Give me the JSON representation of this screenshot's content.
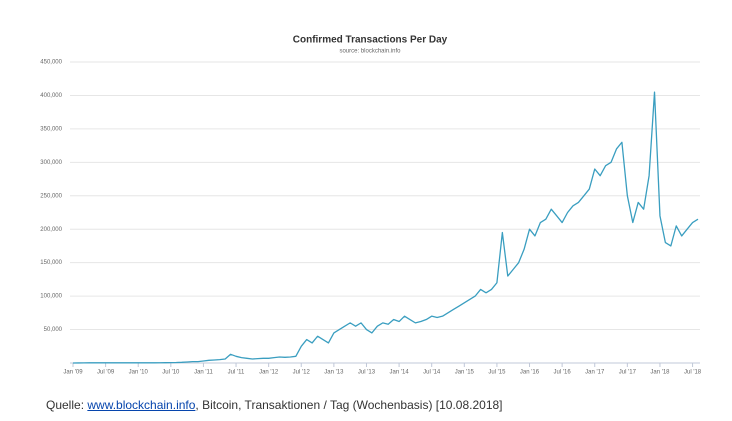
{
  "chart_data": {
    "type": "line",
    "title": "Confirmed Transactions Per Day",
    "subtitle": "source: blockchain.info",
    "color": "#3a9ec0",
    "grid": true,
    "x": [
      "2009-01",
      "2009-02",
      "2009-03",
      "2009-04",
      "2009-05",
      "2009-06",
      "2009-07",
      "2009-08",
      "2009-09",
      "2009-10",
      "2009-11",
      "2009-12",
      "2010-01",
      "2010-02",
      "2010-03",
      "2010-04",
      "2010-05",
      "2010-06",
      "2010-07",
      "2010-08",
      "2010-09",
      "2010-10",
      "2010-11",
      "2010-12",
      "2011-01",
      "2011-02",
      "2011-03",
      "2011-04",
      "2011-05",
      "2011-06",
      "2011-07",
      "2011-08",
      "2011-09",
      "2011-10",
      "2011-11",
      "2011-12",
      "2012-01",
      "2012-02",
      "2012-03",
      "2012-04",
      "2012-05",
      "2012-06",
      "2012-07",
      "2012-08",
      "2012-09",
      "2012-10",
      "2012-11",
      "2012-12",
      "2013-01",
      "2013-02",
      "2013-03",
      "2013-04",
      "2013-05",
      "2013-06",
      "2013-07",
      "2013-08",
      "2013-09",
      "2013-10",
      "2013-11",
      "2013-12",
      "2014-01",
      "2014-02",
      "2014-03",
      "2014-04",
      "2014-05",
      "2014-06",
      "2014-07",
      "2014-08",
      "2014-09",
      "2014-10",
      "2014-11",
      "2014-12",
      "2015-01",
      "2015-02",
      "2015-03",
      "2015-04",
      "2015-05",
      "2015-06",
      "2015-07",
      "2015-08",
      "2015-09",
      "2015-10",
      "2015-11",
      "2015-12",
      "2016-01",
      "2016-02",
      "2016-03",
      "2016-04",
      "2016-05",
      "2016-06",
      "2016-07",
      "2016-08",
      "2016-09",
      "2016-10",
      "2016-11",
      "2016-12",
      "2017-01",
      "2017-02",
      "2017-03",
      "2017-04",
      "2017-05",
      "2017-06",
      "2017-07",
      "2017-08",
      "2017-09",
      "2017-10",
      "2017-11",
      "2017-12",
      "2018-01",
      "2018-02",
      "2018-03",
      "2018-04",
      "2018-05",
      "2018-06",
      "2018-07",
      "2018-08"
    ],
    "values": [
      0,
      100,
      200,
      300,
      400,
      300,
      300,
      300,
      300,
      300,
      300,
      400,
      300,
      300,
      300,
      300,
      400,
      500,
      600,
      700,
      1000,
      1500,
      2000,
      2000,
      3000,
      4000,
      4500,
      5000,
      6000,
      13000,
      10000,
      8000,
      7000,
      6000,
      6500,
      7000,
      7000,
      8000,
      9000,
      8500,
      9000,
      10000,
      25000,
      35000,
      30000,
      40000,
      35000,
      30000,
      45000,
      50000,
      55000,
      60000,
      55000,
      60000,
      50000,
      45000,
      55000,
      60000,
      58000,
      65000,
      62000,
      70000,
      65000,
      60000,
      62000,
      65000,
      70000,
      68000,
      70000,
      75000,
      80000,
      85000,
      90000,
      95000,
      100000,
      110000,
      105000,
      110000,
      120000,
      195000,
      130000,
      140000,
      150000,
      170000,
      200000,
      190000,
      210000,
      215000,
      230000,
      220000,
      210000,
      225000,
      235000,
      240000,
      250000,
      260000,
      290000,
      280000,
      295000,
      300000,
      320000,
      330000,
      250000,
      210000,
      240000,
      230000,
      280000,
      405000,
      220000,
      180000,
      175000,
      205000,
      190000,
      200000,
      210000,
      215000
    ],
    "xlim": [
      "2009-01",
      "2018-08"
    ],
    "xticks": [
      {
        "value": "2009-01",
        "label": "Jan '09"
      },
      {
        "value": "2009-07",
        "label": "Jul '09"
      },
      {
        "value": "2010-01",
        "label": "Jan '10"
      },
      {
        "value": "2010-07",
        "label": "Jul '10"
      },
      {
        "value": "2011-01",
        "label": "Jan '11"
      },
      {
        "value": "2011-07",
        "label": "Jul '11"
      },
      {
        "value": "2012-01",
        "label": "Jan '12"
      },
      {
        "value": "2012-07",
        "label": "Jul '12"
      },
      {
        "value": "2013-01",
        "label": "Jan '13"
      },
      {
        "value": "2013-07",
        "label": "Jul '13"
      },
      {
        "value": "2014-01",
        "label": "Jan '14"
      },
      {
        "value": "2014-07",
        "label": "Jul '14"
      },
      {
        "value": "2015-01",
        "label": "Jan '15"
      },
      {
        "value": "2015-07",
        "label": "Jul '15"
      },
      {
        "value": "2016-01",
        "label": "Jan '16"
      },
      {
        "value": "2016-07",
        "label": "Jul '16"
      },
      {
        "value": "2017-01",
        "label": "Jan '17"
      },
      {
        "value": "2017-07",
        "label": "Jul '17"
      },
      {
        "value": "2018-01",
        "label": "Jan '18"
      },
      {
        "value": "2018-07",
        "label": "Jul '18"
      }
    ],
    "ylim": [
      0,
      450000
    ],
    "yticks": [
      {
        "value": 50000,
        "label": "50,000"
      },
      {
        "value": 100000,
        "label": "100,000"
      },
      {
        "value": 150000,
        "label": "150,000"
      },
      {
        "value": 200000,
        "label": "200,000"
      },
      {
        "value": 250000,
        "label": "250,000"
      },
      {
        "value": 300000,
        "label": "300,000"
      },
      {
        "value": 350000,
        "label": "350,000"
      },
      {
        "value": 400000,
        "label": "400,000"
      },
      {
        "value": 450000,
        "label": "450,000"
      }
    ]
  },
  "caption": {
    "prefix": "Quelle: ",
    "link": "www.blockchain.info",
    "suffix": ", Bitcoin, Transaktionen / Tag (Wochenbasis) [10.08.2018]"
  }
}
